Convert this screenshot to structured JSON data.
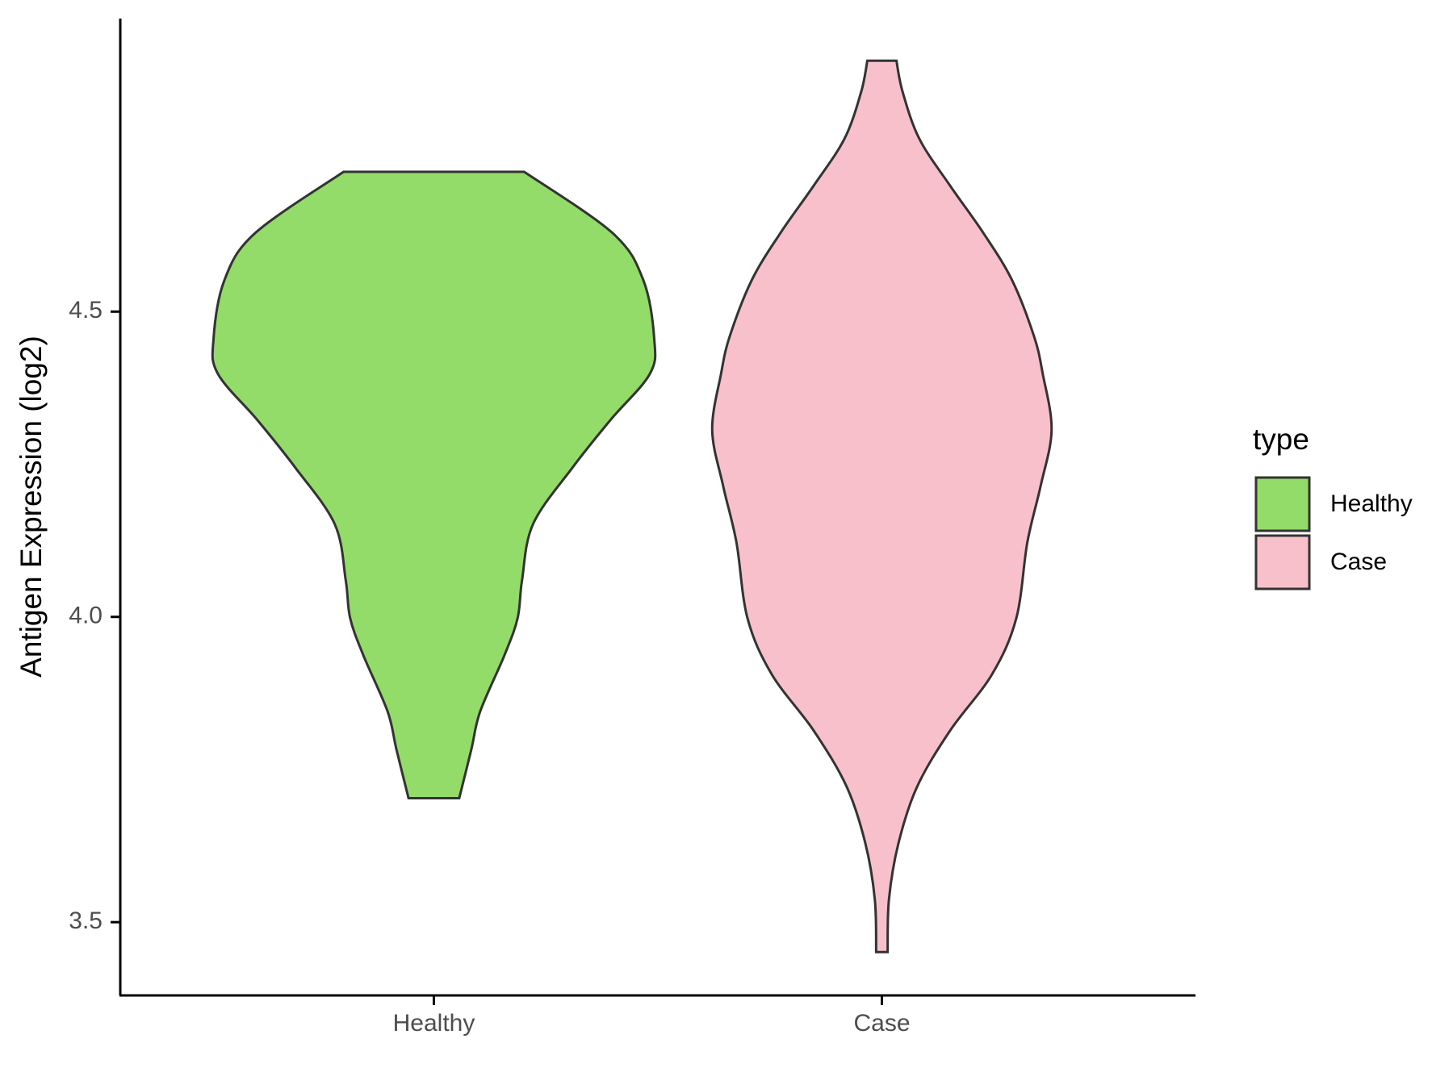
{
  "chart_data": {
    "type": "violin",
    "y_label": "Antigen Expression (log2)",
    "categories": [
      "Healthy",
      "Case"
    ],
    "legend_title": "type",
    "legend_position": "right",
    "ylim": [
      3.38,
      4.98
    ],
    "yticks": [
      3.5,
      {
        "value": 4,
        "label": "4.0"
      },
      4.5
    ],
    "series": [
      {
        "name": "Healthy",
        "color": "#93DC6A",
        "y": [
          4.729,
          4.629,
          4.552,
          4.455,
          4.398,
          4.322,
          4.245,
          4.152,
          4.06,
          3.998,
          3.937,
          3.845,
          3.783,
          3.703
        ],
        "density": [
          0.41,
          0.81,
          0.95,
          1.0,
          0.98,
          0.8,
          0.63,
          0.45,
          0.4,
          0.38,
          0.32,
          0.21,
          0.17,
          0.115
        ]
      },
      {
        "name": "Case",
        "color": "#F8C0CB",
        "y": [
          4.911,
          4.86,
          4.783,
          4.706,
          4.629,
          4.552,
          4.46,
          4.398,
          4.306,
          4.214,
          4.122,
          3.998,
          3.906,
          3.814,
          3.722,
          3.629,
          3.537,
          3.451
        ],
        "density": [
          0.066,
          0.094,
          0.17,
          0.31,
          0.46,
          0.59,
          0.69,
          0.73,
          0.77,
          0.72,
          0.66,
          0.61,
          0.5,
          0.31,
          0.16,
          0.075,
          0.032,
          0.026
        ]
      }
    ]
  }
}
